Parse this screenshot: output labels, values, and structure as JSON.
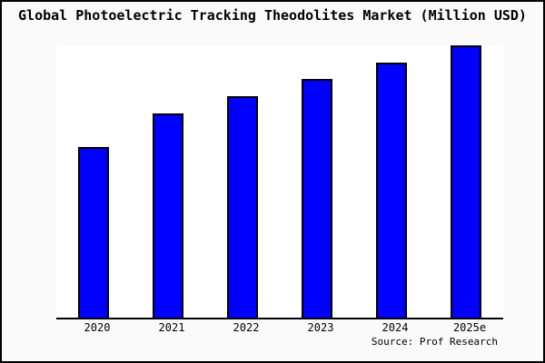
{
  "title": "Global Photoelectric Tracking Theodolites Market (Million USD)",
  "source_label": "Source: Prof Research",
  "colors": {
    "bar_fill": "#0000FF",
    "bar_border": "#000000",
    "figure_background": "#FAFAFA",
    "plot_background": "#FFFFFF",
    "axis_line": "#000000",
    "text": "#000000"
  },
  "chart_data": {
    "type": "bar",
    "title": "Global Photoelectric Tracking Theodolites Market (Million USD)",
    "categories": [
      "2020",
      "2021",
      "2022",
      "2023",
      "2024",
      "2025e"
    ],
    "values": [
      62.7,
      75.0,
      81.3,
      87.7,
      93.7,
      100.0
    ],
    "units": "relative bar height, % of tallest bar (no y-axis scale shown in figure)",
    "xlabel": "",
    "ylabel": "",
    "legend_visible": false,
    "grid_visible": false,
    "y_axis_ticks_visible": false,
    "source": "Source: Prof Research"
  }
}
